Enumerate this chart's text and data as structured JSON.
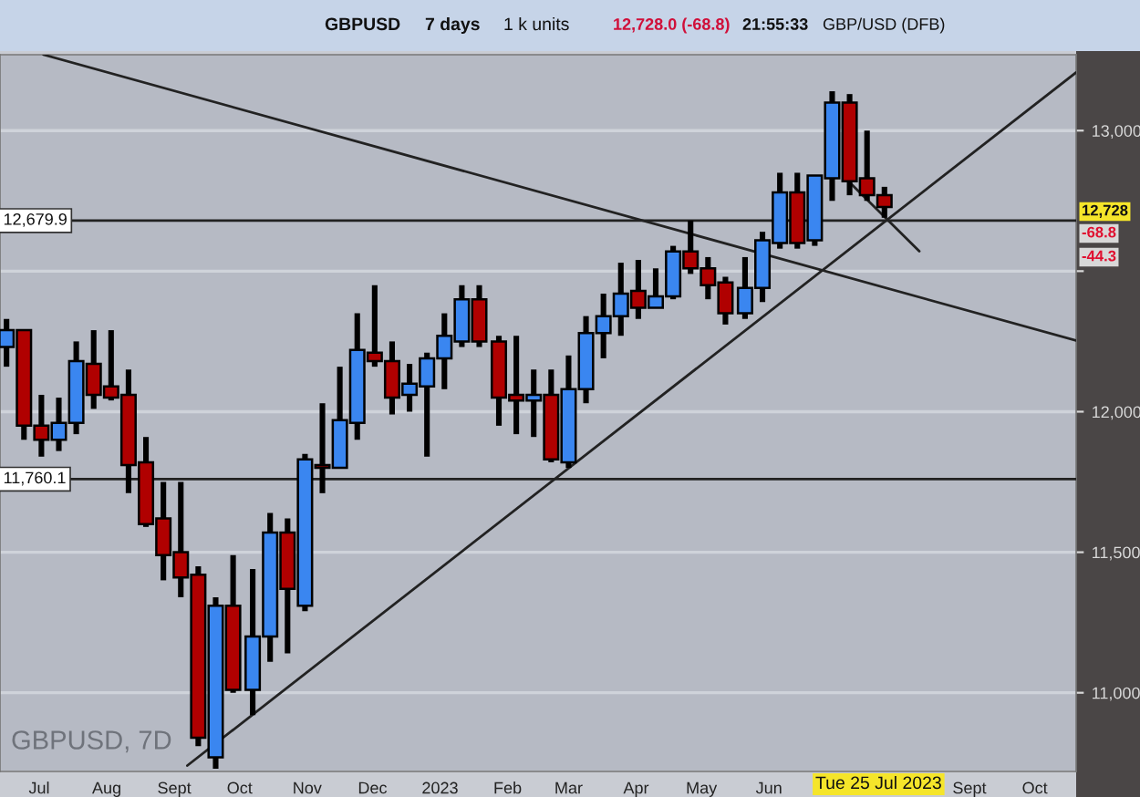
{
  "chart_data": {
    "type": "candlestick",
    "title": "GBPUSD",
    "x": [
      "2022-06-16",
      "2022-06-24",
      "2022-07-02",
      "2022-07-10",
      "2022-07-18",
      "2022-07-26",
      "2022-08-03",
      "2022-08-11",
      "2022-08-19",
      "2022-08-27",
      "2022-09-04",
      "2022-09-12",
      "2022-09-20",
      "2022-09-28",
      "2022-10-07",
      "2022-10-15",
      "2022-10-23",
      "2022-10-31",
      "2022-11-08",
      "2022-11-16",
      "2022-11-24",
      "2022-12-02",
      "2022-12-10",
      "2022-12-18",
      "2022-12-26",
      "2023-01-03",
      "2023-01-11",
      "2023-01-19",
      "2023-01-28",
      "2023-02-05",
      "2023-02-13",
      "2023-02-21",
      "2023-03-01",
      "2023-03-09",
      "2023-03-17",
      "2023-03-25",
      "2023-04-02",
      "2023-04-10",
      "2023-04-18",
      "2023-04-26",
      "2023-05-04",
      "2023-05-12",
      "2023-05-21",
      "2023-05-29",
      "2023-06-06",
      "2023-06-14",
      "2023-06-22",
      "2023-06-30",
      "2023-07-08",
      "2023-07-16",
      "2023-07-24"
    ],
    "ohlc": [
      [
        12230,
        12330,
        12160,
        12290
      ],
      [
        12290,
        12290,
        11900,
        11950
      ],
      [
        11950,
        12060,
        11840,
        11900
      ],
      [
        11900,
        12050,
        11860,
        11960
      ],
      [
        11960,
        12250,
        11920,
        12180
      ],
      [
        12170,
        12290,
        12010,
        12060
      ],
      [
        12090,
        12290,
        12040,
        12050
      ],
      [
        12060,
        12150,
        11710,
        11810
      ],
      [
        11820,
        11910,
        11590,
        11600
      ],
      [
        11620,
        11750,
        11400,
        11490
      ],
      [
        11500,
        11750,
        11340,
        11410
      ],
      [
        11420,
        11450,
        10810,
        10840
      ],
      [
        10770,
        11340,
        10730,
        11310
      ],
      [
        11310,
        11490,
        11000,
        11010
      ],
      [
        11010,
        11440,
        10920,
        11200
      ],
      [
        11200,
        11640,
        11110,
        11570
      ],
      [
        11570,
        11620,
        11140,
        11370
      ],
      [
        11310,
        11850,
        11290,
        11830
      ],
      [
        11810,
        12030,
        11710,
        11800
      ],
      [
        11800,
        12160,
        11800,
        11970
      ],
      [
        11960,
        12350,
        11900,
        12220
      ],
      [
        12210,
        12450,
        12160,
        12180
      ],
      [
        12180,
        12250,
        11990,
        12050
      ],
      [
        12060,
        12170,
        12000,
        12100
      ],
      [
        12090,
        12210,
        11840,
        12190
      ],
      [
        12190,
        12350,
        12080,
        12270
      ],
      [
        12250,
        12450,
        12230,
        12400
      ],
      [
        12400,
        12450,
        12230,
        12250
      ],
      [
        12250,
        12270,
        11950,
        12050
      ],
      [
        12060,
        12270,
        11920,
        12040
      ],
      [
        12040,
        12150,
        11910,
        12060
      ],
      [
        12060,
        12150,
        11820,
        11830
      ],
      [
        11820,
        12200,
        11800,
        12080
      ],
      [
        12080,
        12340,
        12030,
        12280
      ],
      [
        12280,
        12420,
        12190,
        12340
      ],
      [
        12340,
        12530,
        12270,
        12420
      ],
      [
        12430,
        12540,
        12330,
        12370
      ],
      [
        12370,
        12510,
        12370,
        12410
      ],
      [
        12410,
        12590,
        12400,
        12570
      ],
      [
        12570,
        12680,
        12490,
        12510
      ],
      [
        12510,
        12550,
        12400,
        12450
      ],
      [
        12460,
        12480,
        12310,
        12350
      ],
      [
        12350,
        12550,
        12330,
        12440
      ],
      [
        12440,
        12640,
        12390,
        12610
      ],
      [
        12600,
        12850,
        12580,
        12780
      ],
      [
        12780,
        12850,
        12580,
        12600
      ],
      [
        12610,
        12840,
        12590,
        12840
      ],
      [
        12830,
        13140,
        12750,
        13100
      ],
      [
        13100,
        13130,
        12770,
        12820
      ],
      [
        12830,
        13000,
        12750,
        12770
      ],
      [
        12770,
        12800,
        12690,
        12728
      ]
    ],
    "colors": [
      "#3a86f0",
      "#b00000",
      "#b00000",
      "#3a86f0",
      "#3a86f0",
      "#b00000",
      "#b00000",
      "#b00000",
      "#b00000",
      "#b00000",
      "#b00000",
      "#b00000",
      "#3a86f0",
      "#b00000",
      "#3a86f0",
      "#3a86f0",
      "#b00000",
      "#3a86f0",
      "#b00000",
      "#3a86f0",
      "#3a86f0",
      "#b00000",
      "#b00000",
      "#3a86f0",
      "#3a86f0",
      "#3a86f0",
      "#3a86f0",
      "#b00000",
      "#b00000",
      "#b00000",
      "#3a86f0",
      "#b00000",
      "#3a86f0",
      "#3a86f0",
      "#3a86f0",
      "#3a86f0",
      "#b00000",
      "#3a86f0",
      "#3a86f0",
      "#b00000",
      "#b00000",
      "#b00000",
      "#3a86f0",
      "#3a86f0",
      "#3a86f0",
      "#b00000",
      "#3a86f0",
      "#3a86f0",
      "#b00000",
      "#b00000",
      "#b00000"
    ],
    "series": [
      {
        "type": "line",
        "color": "#222222",
        "x": [
          "2022-07-03",
          "2023-10-20"
        ],
        "values": [
          13270,
          12253
        ]
      },
      {
        "type": "line",
        "color": "#222222",
        "x": [
          "2022-09-07",
          "2023-10-20"
        ],
        "values": [
          10741,
          13207
        ]
      },
      {
        "type": "line",
        "color": "#222222",
        "x": [
          "2023-07-06",
          "2023-08-09"
        ],
        "values": [
          12831,
          12571
        ]
      }
    ],
    "ref_lines": [
      {
        "axis": "y",
        "value": 12679.9,
        "label": "12,679.9",
        "color": "#222222"
      },
      {
        "axis": "y",
        "value": 11760.1,
        "label": "11,760.1",
        "color": "#222222"
      }
    ],
    "ylim": [
      10720,
      13270
    ],
    "yticks": [
      {
        "value": 11000,
        "label": "11,000"
      },
      {
        "value": 11500,
        "label": "11,500"
      },
      {
        "value": 12000,
        "label": "12,000"
      },
      {
        "value": 12500,
        "label": null
      },
      {
        "value": 13000,
        "label": "13,000"
      }
    ],
    "xlim": [
      "2022-06-13",
      "2023-10-20"
    ],
    "xticks": [
      {
        "value": "2022-07-01",
        "label": "Jul"
      },
      {
        "value": "2022-08-01",
        "label": "Aug"
      },
      {
        "value": "2022-09-01",
        "label": "Sept"
      },
      {
        "value": "2022-10-01",
        "label": "Oct"
      },
      {
        "value": "2022-11-01",
        "label": "Nov"
      },
      {
        "value": "2022-12-01",
        "label": "Dec"
      },
      {
        "value": "2023-01-01",
        "label": "2023"
      },
      {
        "value": "2023-02-01",
        "label": "Feb"
      },
      {
        "value": "2023-03-01",
        "label": "Mar"
      },
      {
        "value": "2023-04-01",
        "label": "Apr"
      },
      {
        "value": "2023-05-01",
        "label": "May"
      },
      {
        "value": "2023-06-01",
        "label": "Jun"
      },
      {
        "value": "2023-09-01",
        "label": "Sept"
      },
      {
        "value": "2023-10-01",
        "label": "Oct"
      }
    ],
    "grid": "y",
    "annotations": [
      "7 days",
      "1 k units",
      "12,728.0 (-68.8)",
      "21:55:33",
      "GBP/USD (DFB)",
      "GBPUSD, 7D",
      "Tue 25 Jul 2023",
      "12,728",
      "-68.8",
      "-44.3"
    ]
  }
}
